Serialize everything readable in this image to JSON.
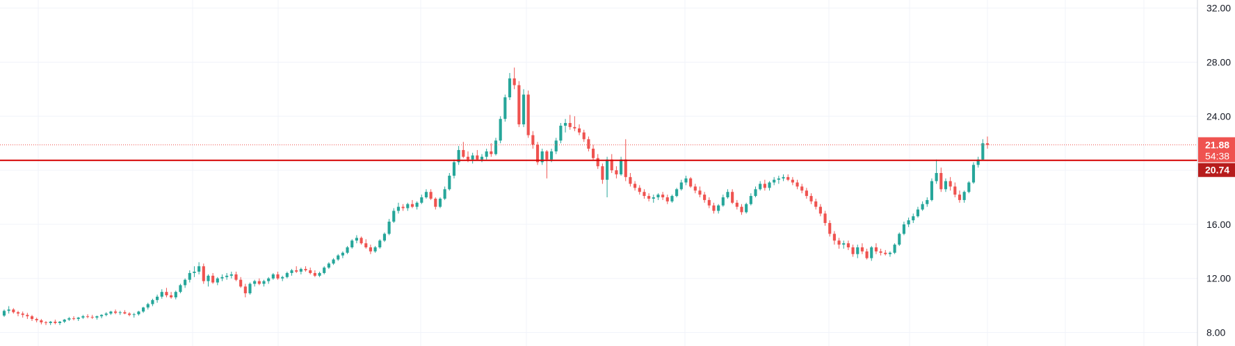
{
  "chart_data": {
    "type": "candlestick",
    "title": "",
    "xlabel": "",
    "ylabel": "",
    "ylim": [
      7,
      32.6
    ],
    "y_ticks": [
      "8.00",
      "12.00",
      "16.00",
      "20.00",
      "24.00",
      "28.00",
      "32.00"
    ],
    "grid": true,
    "colors": {
      "up": "#26a69a",
      "down": "#ef5350",
      "grid": "#f0f3fa",
      "axis_border": "#d1d4dc",
      "horizontal_line": "#d50000",
      "last_price_line": "#ef5350",
      "last_badge": "#ef5350",
      "level_badge": "#b71c1c"
    },
    "horizontal_level": {
      "value": 20.74,
      "label": "20.74"
    },
    "last_price": {
      "value": 21.88,
      "label": "21.88",
      "countdown": "54:38"
    },
    "ohlc": [
      [
        9.25,
        9.7,
        9.15,
        9.6
      ],
      [
        9.6,
        9.95,
        9.4,
        9.7
      ],
      [
        9.7,
        9.8,
        9.4,
        9.5
      ],
      [
        9.5,
        9.6,
        9.2,
        9.4
      ],
      [
        9.4,
        9.55,
        9.1,
        9.3
      ],
      [
        9.3,
        9.45,
        9.0,
        9.2
      ],
      [
        9.2,
        9.3,
        8.85,
        9.0
      ],
      [
        9.0,
        9.1,
        8.75,
        8.9
      ],
      [
        8.9,
        9.0,
        8.6,
        8.75
      ],
      [
        8.75,
        8.85,
        8.55,
        8.7
      ],
      [
        8.7,
        8.85,
        8.55,
        8.8
      ],
      [
        8.8,
        8.95,
        8.6,
        8.7
      ],
      [
        8.7,
        8.85,
        8.55,
        8.8
      ],
      [
        8.8,
        9.0,
        8.7,
        8.95
      ],
      [
        8.95,
        9.15,
        8.85,
        9.05
      ],
      [
        9.05,
        9.2,
        8.9,
        9.0
      ],
      [
        9.0,
        9.15,
        8.85,
        9.1
      ],
      [
        9.1,
        9.3,
        9.0,
        9.2
      ],
      [
        9.2,
        9.35,
        9.05,
        9.15
      ],
      [
        9.15,
        9.3,
        9.0,
        9.1
      ],
      [
        9.1,
        9.25,
        8.95,
        9.2
      ],
      [
        9.2,
        9.35,
        9.05,
        9.3
      ],
      [
        9.3,
        9.5,
        9.2,
        9.4
      ],
      [
        9.4,
        9.6,
        9.3,
        9.55
      ],
      [
        9.55,
        9.7,
        9.35,
        9.45
      ],
      [
        9.45,
        9.6,
        9.3,
        9.5
      ],
      [
        9.5,
        9.65,
        9.35,
        9.4
      ],
      [
        9.4,
        9.5,
        9.2,
        9.3
      ],
      [
        9.3,
        9.45,
        9.1,
        9.35
      ],
      [
        9.35,
        9.6,
        9.25,
        9.55
      ],
      [
        9.55,
        9.9,
        9.45,
        9.85
      ],
      [
        9.85,
        10.2,
        9.7,
        10.1
      ],
      [
        10.1,
        10.5,
        9.95,
        10.4
      ],
      [
        10.4,
        10.8,
        10.2,
        10.65
      ],
      [
        10.65,
        11.2,
        10.5,
        11.0
      ],
      [
        11.0,
        11.3,
        10.6,
        10.75
      ],
      [
        10.75,
        11.0,
        10.5,
        10.6
      ],
      [
        10.6,
        11.1,
        10.45,
        11.0
      ],
      [
        11.0,
        11.6,
        10.9,
        11.5
      ],
      [
        11.5,
        12.0,
        11.3,
        11.9
      ],
      [
        11.9,
        12.6,
        11.7,
        12.4
      ],
      [
        12.4,
        12.9,
        12.1,
        12.5
      ],
      [
        12.5,
        13.2,
        12.3,
        12.9
      ],
      [
        12.9,
        13.1,
        11.6,
        11.8
      ],
      [
        11.8,
        12.3,
        11.4,
        12.2
      ],
      [
        12.2,
        12.4,
        11.6,
        11.7
      ],
      [
        11.7,
        12.1,
        11.5,
        12.0
      ],
      [
        12.0,
        12.3,
        11.8,
        12.1
      ],
      [
        12.1,
        12.4,
        11.9,
        12.2
      ],
      [
        12.2,
        12.5,
        12.0,
        12.3
      ],
      [
        12.3,
        12.5,
        11.8,
        11.9
      ],
      [
        11.9,
        12.1,
        11.3,
        11.4
      ],
      [
        11.4,
        11.6,
        10.6,
        10.9
      ],
      [
        10.9,
        11.7,
        10.8,
        11.6
      ],
      [
        11.6,
        11.9,
        11.4,
        11.8
      ],
      [
        11.8,
        12.0,
        11.5,
        11.6
      ],
      [
        11.6,
        11.9,
        11.4,
        11.8
      ],
      [
        11.8,
        12.1,
        11.6,
        12.0
      ],
      [
        12.0,
        12.4,
        11.9,
        12.3
      ],
      [
        12.3,
        12.5,
        11.9,
        12.0
      ],
      [
        12.0,
        12.2,
        11.8,
        12.1
      ],
      [
        12.1,
        12.5,
        12.0,
        12.4
      ],
      [
        12.4,
        12.7,
        12.2,
        12.6
      ],
      [
        12.6,
        12.9,
        12.4,
        12.5
      ],
      [
        12.5,
        12.8,
        12.3,
        12.7
      ],
      [
        12.7,
        12.9,
        12.5,
        12.6
      ],
      [
        12.6,
        12.8,
        12.3,
        12.4
      ],
      [
        12.4,
        12.6,
        12.1,
        12.2
      ],
      [
        12.2,
        12.5,
        12.1,
        12.4
      ],
      [
        12.4,
        12.9,
        12.3,
        12.8
      ],
      [
        12.8,
        13.2,
        12.7,
        13.1
      ],
      [
        13.1,
        13.5,
        13.0,
        13.4
      ],
      [
        13.4,
        13.8,
        13.3,
        13.7
      ],
      [
        13.7,
        14.0,
        13.5,
        13.9
      ],
      [
        13.9,
        14.4,
        13.8,
        14.3
      ],
      [
        14.3,
        14.9,
        14.2,
        14.8
      ],
      [
        14.8,
        15.2,
        14.6,
        15.0
      ],
      [
        15.0,
        15.1,
        14.5,
        14.6
      ],
      [
        14.6,
        14.9,
        14.2,
        14.3
      ],
      [
        14.3,
        14.5,
        13.8,
        14.0
      ],
      [
        14.0,
        14.4,
        13.9,
        14.3
      ],
      [
        14.3,
        14.9,
        14.2,
        14.8
      ],
      [
        14.8,
        15.4,
        14.7,
        15.3
      ],
      [
        15.3,
        16.4,
        15.2,
        16.2
      ],
      [
        16.2,
        17.2,
        16.1,
        17.0
      ],
      [
        17.0,
        17.6,
        16.8,
        17.3
      ],
      [
        17.3,
        17.5,
        17.0,
        17.2
      ],
      [
        17.2,
        17.6,
        17.0,
        17.5
      ],
      [
        17.5,
        17.8,
        17.2,
        17.3
      ],
      [
        17.3,
        17.7,
        17.1,
        17.6
      ],
      [
        17.6,
        18.2,
        17.5,
        18.0
      ],
      [
        18.0,
        18.6,
        17.9,
        18.4
      ],
      [
        18.4,
        18.6,
        17.8,
        17.9
      ],
      [
        17.9,
        18.0,
        17.1,
        17.3
      ],
      [
        17.3,
        18.0,
        17.2,
        17.9
      ],
      [
        17.9,
        18.8,
        17.8,
        18.6
      ],
      [
        18.6,
        19.8,
        18.5,
        19.6
      ],
      [
        19.6,
        20.8,
        19.4,
        20.6
      ],
      [
        20.6,
        21.8,
        20.4,
        21.5
      ],
      [
        21.5,
        22.1,
        20.9,
        21.0
      ],
      [
        21.0,
        21.4,
        20.6,
        20.8
      ],
      [
        20.8,
        21.3,
        20.5,
        21.1
      ],
      [
        21.1,
        21.5,
        20.7,
        20.8
      ],
      [
        20.8,
        21.2,
        20.6,
        21.0
      ],
      [
        21.0,
        21.6,
        20.8,
        21.4
      ],
      [
        21.4,
        22.0,
        21.0,
        21.2
      ],
      [
        21.2,
        22.4,
        21.1,
        22.2
      ],
      [
        22.2,
        24.0,
        22.0,
        23.8
      ],
      [
        23.8,
        25.6,
        23.6,
        25.4
      ],
      [
        25.4,
        27.2,
        25.2,
        26.8
      ],
      [
        26.8,
        27.6,
        26.0,
        26.3
      ],
      [
        26.3,
        26.6,
        23.2,
        23.4
      ],
      [
        23.4,
        26.0,
        23.2,
        25.6
      ],
      [
        25.6,
        25.9,
        22.4,
        22.6
      ],
      [
        22.6,
        22.9,
        21.6,
        21.9
      ],
      [
        21.9,
        22.1,
        20.4,
        20.6
      ],
      [
        20.6,
        21.6,
        20.4,
        21.4
      ],
      [
        21.4,
        21.5,
        19.4,
        20.8
      ],
      [
        20.8,
        21.6,
        20.6,
        21.4
      ],
      [
        21.4,
        22.4,
        21.2,
        22.2
      ],
      [
        22.2,
        23.5,
        22.0,
        23.3
      ],
      [
        23.3,
        23.8,
        22.8,
        23.5
      ],
      [
        23.5,
        24.1,
        23.0,
        23.2
      ],
      [
        23.2,
        24.0,
        22.9,
        23.1
      ],
      [
        23.1,
        23.4,
        22.6,
        22.8
      ],
      [
        22.8,
        23.0,
        22.1,
        22.3
      ],
      [
        22.3,
        22.5,
        21.4,
        21.6
      ],
      [
        21.6,
        21.9,
        20.7,
        20.9
      ],
      [
        20.9,
        21.2,
        20.1,
        20.3
      ],
      [
        20.3,
        20.5,
        19.0,
        19.3
      ],
      [
        19.3,
        21.0,
        18.0,
        20.8
      ],
      [
        20.8,
        21.2,
        19.8,
        20.0
      ],
      [
        20.0,
        20.3,
        19.4,
        19.7
      ],
      [
        19.7,
        21.0,
        19.6,
        20.8
      ],
      [
        20.8,
        22.3,
        19.2,
        19.5
      ],
      [
        19.5,
        19.8,
        18.8,
        19.0
      ],
      [
        19.0,
        19.2,
        18.5,
        18.7
      ],
      [
        18.7,
        18.9,
        18.2,
        18.4
      ],
      [
        18.4,
        18.6,
        17.9,
        18.1
      ],
      [
        18.1,
        18.3,
        17.7,
        17.9
      ],
      [
        17.9,
        18.2,
        17.6,
        18.0
      ],
      [
        18.0,
        18.3,
        17.8,
        18.2
      ],
      [
        18.2,
        18.4,
        17.8,
        18.0
      ],
      [
        18.0,
        18.2,
        17.5,
        17.7
      ],
      [
        17.7,
        18.2,
        17.6,
        18.1
      ],
      [
        18.1,
        18.7,
        18.0,
        18.6
      ],
      [
        18.6,
        19.3,
        18.5,
        19.1
      ],
      [
        19.1,
        19.6,
        18.9,
        19.4
      ],
      [
        19.4,
        19.5,
        18.7,
        18.8
      ],
      [
        18.8,
        19.0,
        18.3,
        18.5
      ],
      [
        18.5,
        18.8,
        18.0,
        18.2
      ],
      [
        18.2,
        18.4,
        17.6,
        17.8
      ],
      [
        17.8,
        18.0,
        17.2,
        17.4
      ],
      [
        17.4,
        17.6,
        16.8,
        17.0
      ],
      [
        17.0,
        17.5,
        16.8,
        17.4
      ],
      [
        17.4,
        18.2,
        17.3,
        18.0
      ],
      [
        18.0,
        18.6,
        17.9,
        18.4
      ],
      [
        18.4,
        18.6,
        17.5,
        17.6
      ],
      [
        17.6,
        17.8,
        17.1,
        17.3
      ],
      [
        17.3,
        17.5,
        16.7,
        16.9
      ],
      [
        16.9,
        17.6,
        16.8,
        17.5
      ],
      [
        17.5,
        18.3,
        17.4,
        18.1
      ],
      [
        18.1,
        18.8,
        18.0,
        18.6
      ],
      [
        18.6,
        19.2,
        18.5,
        19.0
      ],
      [
        19.0,
        19.3,
        18.5,
        18.7
      ],
      [
        18.7,
        19.2,
        18.5,
        19.1
      ],
      [
        19.1,
        19.5,
        18.9,
        19.3
      ],
      [
        19.3,
        19.6,
        19.0,
        19.4
      ],
      [
        19.4,
        19.7,
        19.2,
        19.5
      ],
      [
        19.5,
        19.7,
        19.2,
        19.3
      ],
      [
        19.3,
        19.5,
        18.9,
        19.1
      ],
      [
        19.1,
        19.3,
        18.6,
        18.8
      ],
      [
        18.8,
        19.0,
        18.3,
        18.5
      ],
      [
        18.5,
        18.7,
        17.9,
        18.1
      ],
      [
        18.1,
        18.3,
        17.5,
        17.7
      ],
      [
        17.7,
        17.9,
        17.1,
        17.3
      ],
      [
        17.3,
        17.5,
        16.6,
        16.8
      ],
      [
        16.8,
        17.0,
        15.9,
        16.1
      ],
      [
        16.1,
        16.3,
        15.1,
        15.3
      ],
      [
        15.3,
        15.5,
        14.5,
        14.8
      ],
      [
        14.8,
        15.0,
        14.2,
        14.5
      ],
      [
        14.5,
        14.8,
        14.2,
        14.6
      ],
      [
        14.6,
        14.8,
        14.1,
        14.3
      ],
      [
        14.3,
        14.5,
        13.6,
        13.8
      ],
      [
        13.8,
        14.5,
        13.5,
        14.3
      ],
      [
        14.3,
        14.6,
        13.8,
        14.0
      ],
      [
        14.0,
        14.2,
        13.4,
        13.5
      ],
      [
        13.5,
        14.4,
        13.3,
        14.3
      ],
      [
        14.3,
        14.6,
        13.8,
        14.0
      ],
      [
        14.0,
        14.2,
        13.7,
        13.9
      ],
      [
        13.9,
        14.1,
        13.7,
        13.8
      ],
      [
        13.8,
        14.0,
        13.6,
        13.9
      ],
      [
        13.9,
        14.6,
        13.8,
        14.5
      ],
      [
        14.5,
        15.4,
        14.4,
        15.3
      ],
      [
        15.3,
        16.2,
        15.2,
        16.0
      ],
      [
        16.0,
        16.5,
        15.8,
        16.3
      ],
      [
        16.3,
        16.8,
        16.1,
        16.6
      ],
      [
        16.6,
        17.3,
        16.5,
        17.1
      ],
      [
        17.1,
        17.7,
        17.0,
        17.5
      ],
      [
        17.5,
        18.0,
        17.3,
        17.8
      ],
      [
        17.8,
        19.4,
        17.7,
        19.2
      ],
      [
        19.2,
        20.8,
        19.0,
        19.8
      ],
      [
        19.8,
        20.2,
        18.4,
        18.6
      ],
      [
        18.6,
        19.4,
        18.4,
        19.2
      ],
      [
        19.2,
        19.5,
        18.5,
        18.8
      ],
      [
        18.8,
        19.1,
        18.0,
        18.2
      ],
      [
        18.2,
        18.5,
        17.6,
        17.8
      ],
      [
        17.8,
        18.5,
        17.6,
        18.4
      ],
      [
        18.4,
        19.2,
        18.3,
        19.1
      ],
      [
        19.1,
        20.6,
        19.0,
        20.4
      ],
      [
        20.4,
        21.0,
        20.2,
        20.8
      ],
      [
        20.8,
        22.3,
        20.7,
        22.0
      ],
      [
        22.0,
        22.5,
        21.6,
        21.88
      ]
    ]
  }
}
